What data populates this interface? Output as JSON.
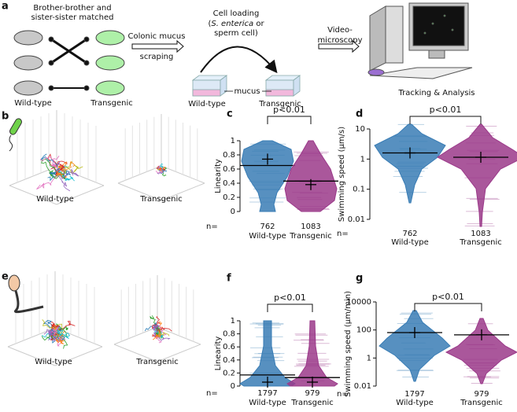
{
  "panel_labels": [
    "a",
    "b",
    "c",
    "d",
    "e",
    "f",
    "g"
  ],
  "panel_a": {
    "pairing": [
      "Brother-brother and",
      "sister-sister matched"
    ],
    "mouse_labels": [
      "Wild-type",
      "Transgenic"
    ],
    "step1": [
      "Colonic mucus",
      "scraping"
    ],
    "step2": [
      "Cell loading",
      "(",
      "S. enterica",
      " or",
      "sperm cell)"
    ],
    "mucus": "mucus",
    "chamber_labels": [
      "Wild-type",
      "Transgenic"
    ],
    "step3": [
      "Video-",
      "microscopy"
    ],
    "step4": "Tracking & Analysis"
  },
  "panel_b": {
    "labels": [
      "Wild-type",
      "Transgenic"
    ]
  },
  "panel_e": {
    "labels": [
      "Wild-type",
      "Transgenic"
    ]
  },
  "chart_data": [
    {
      "type": "violin",
      "ylabel": "Linearity",
      "categories": [
        "Wild-type",
        "Transgenic"
      ],
      "n_label": "n=",
      "n": [
        762,
        1083
      ],
      "lines": [
        0.65,
        0.43
      ],
      "means": [
        0.74,
        0.38
      ],
      "annotation": "p<0.01",
      "colors": [
        "#3a7db5",
        "#9b3a8a"
      ],
      "ylim": [
        0,
        1
      ],
      "yticks": [
        0,
        0.2,
        0.4,
        0.6,
        0.8,
        1
      ],
      "log": false
    },
    {
      "type": "violin",
      "ylabel": "Swimming speed (μm/s)",
      "categories": [
        "Wild-type",
        "Transgenic"
      ],
      "n_label": "n=",
      "n": [
        762,
        1083
      ],
      "lines": [
        1.6,
        1.15
      ],
      "means": [
        1.6,
        1.15
      ],
      "annotation": "p<0.01",
      "colors": [
        "#3a7db5",
        "#9b3a8a"
      ],
      "ylim": [
        0.01,
        10
      ],
      "yticks": [
        0.01,
        0.1,
        1,
        10
      ],
      "log": true
    },
    {
      "type": "violin",
      "ylabel": "Linearity",
      "categories": [
        "Wild-type",
        "Transgenic"
      ],
      "n_label": "n=",
      "n": [
        1797,
        979
      ],
      "lines": [
        0.17,
        0.13
      ],
      "means": [
        0.06,
        0.06
      ],
      "annotation": "p<0.01",
      "colors": [
        "#3a7db5",
        "#9b3a8a"
      ],
      "ylim": [
        0,
        1
      ],
      "yticks": [
        0,
        0.2,
        0.4,
        0.6,
        0.8,
        1
      ],
      "log": false
    },
    {
      "type": "violin",
      "ylabel": "Swimming speed (μm/min)",
      "categories": [
        "Wild-type",
        "Transgenic"
      ],
      "n_label": "n=",
      "n": [
        1797,
        979
      ],
      "lines": [
        65,
        45
      ],
      "means": [
        65,
        45
      ],
      "annotation": "p<0.01",
      "colors": [
        "#3a7db5",
        "#9b3a8a"
      ],
      "ylim": [
        0.01,
        10000
      ],
      "yticks": [
        0.01,
        1,
        100,
        10000
      ],
      "log": true
    }
  ]
}
